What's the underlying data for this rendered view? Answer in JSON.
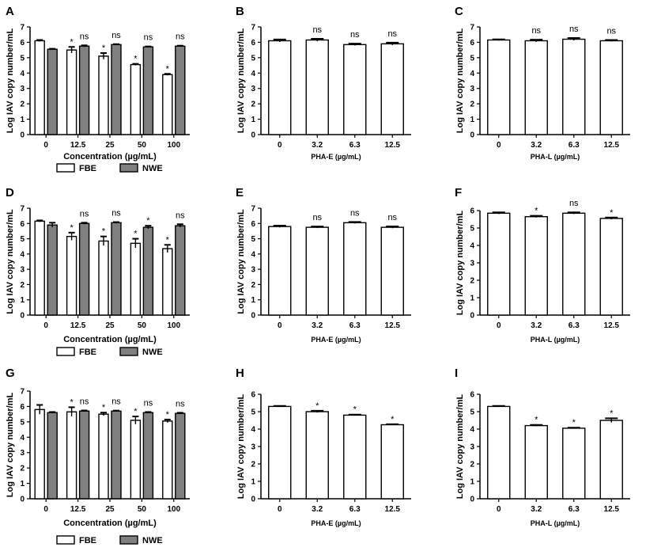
{
  "colors": {
    "fbe": "#ffffff",
    "nwe": "#808080",
    "axis": "#000000",
    "single": "#ffffff"
  },
  "chart_data": [
    {
      "panel": "A",
      "type": "bar",
      "title": "",
      "ylabel": "Log IAV copy number/mL",
      "xlabel": "Concentration (µg/mL)",
      "ylim": [
        0,
        7
      ],
      "yticks": [
        "0",
        "1",
        "2",
        "3",
        "4",
        "5",
        "6",
        "7"
      ],
      "categories": [
        "0",
        "12.5",
        "25",
        "50",
        "100"
      ],
      "legend": [
        "FBE",
        "NWE"
      ],
      "series": [
        {
          "name": "FBE",
          "values": [
            6.1,
            5.5,
            5.1,
            4.55,
            3.9
          ],
          "errors": [
            0.05,
            0.2,
            0.2,
            0.05,
            0.05
          ],
          "sig": [
            "",
            "*",
            "*",
            "*",
            "*"
          ]
        },
        {
          "name": "NWE",
          "values": [
            5.55,
            5.75,
            5.85,
            5.7,
            5.75
          ],
          "errors": [
            0.03,
            0.05,
            0.03,
            0.03,
            0.03
          ],
          "sig": [
            "",
            "ns",
            "ns",
            "ns",
            "ns"
          ]
        }
      ]
    },
    {
      "panel": "B",
      "type": "bar",
      "ylabel": "Log IAV copy number/mL",
      "xlabel": "PHA-E (µg/mL)",
      "ylim": [
        0,
        7
      ],
      "yticks": [
        "0",
        "1",
        "2",
        "3",
        "4",
        "5",
        "6",
        "7"
      ],
      "categories": [
        "0",
        "3.2",
        "6.3",
        "12.5"
      ],
      "series": [
        {
          "name": "PHA-E",
          "values": [
            6.1,
            6.15,
            5.85,
            5.9
          ],
          "errors": [
            0.08,
            0.08,
            0.06,
            0.08
          ],
          "sig": [
            "",
            "ns",
            "ns",
            "ns"
          ]
        }
      ]
    },
    {
      "panel": "C",
      "type": "bar",
      "ylabel": "Log IAV copy number/mL",
      "xlabel": "PHA-L (µg/mL)",
      "ylim": [
        0,
        7
      ],
      "yticks": [
        "0",
        "1",
        "2",
        "3",
        "4",
        "5",
        "6",
        "7"
      ],
      "categories": [
        "0",
        "3.2",
        "6.3",
        "12.5"
      ],
      "series": [
        {
          "name": "PHA-L",
          "values": [
            6.15,
            6.1,
            6.2,
            6.1
          ],
          "errors": [
            0.04,
            0.07,
            0.08,
            0.05
          ],
          "sig": [
            "",
            "ns",
            "ns",
            "ns"
          ]
        }
      ]
    },
    {
      "panel": "D",
      "type": "bar",
      "ylabel": "Log IAV copy number/mL",
      "xlabel": "Concentration (µg/mL)",
      "ylim": [
        0,
        7
      ],
      "yticks": [
        "0",
        "1",
        "2",
        "3",
        "4",
        "5",
        "6",
        "7"
      ],
      "categories": [
        "0",
        "12.5",
        "25",
        "50",
        "100"
      ],
      "legend": [
        "FBE",
        "NWE"
      ],
      "series": [
        {
          "name": "FBE",
          "values": [
            6.15,
            5.15,
            4.85,
            4.7,
            4.35
          ],
          "errors": [
            0.05,
            0.25,
            0.3,
            0.3,
            0.25
          ],
          "sig": [
            "",
            "*",
            "*",
            "*",
            "*"
          ]
        },
        {
          "name": "NWE",
          "values": [
            5.9,
            6.0,
            6.05,
            5.75,
            5.85
          ],
          "errors": [
            0.15,
            0.05,
            0.04,
            0.1,
            0.1
          ],
          "sig": [
            "",
            "ns",
            "ns",
            "*",
            "ns"
          ]
        }
      ]
    },
    {
      "panel": "E",
      "type": "bar",
      "ylabel": "Log IAV copy number/mL",
      "xlabel": "PHA-E (µg/mL)",
      "ylim": [
        0,
        7
      ],
      "yticks": [
        "0",
        "1",
        "2",
        "3",
        "4",
        "5",
        "6",
        "7"
      ],
      "categories": [
        "0",
        "3.2",
        "6.3",
        "12.5"
      ],
      "series": [
        {
          "name": "PHA-E",
          "values": [
            5.8,
            5.75,
            6.05,
            5.75
          ],
          "errors": [
            0.06,
            0.05,
            0.05,
            0.06
          ],
          "sig": [
            "",
            "ns",
            "ns",
            "ns"
          ]
        }
      ]
    },
    {
      "panel": "F",
      "type": "bar",
      "ylabel": "Log IAV copy number/mL",
      "xlabel": "PHA-L (µg/mL)",
      "ylim": [
        0,
        6
      ],
      "yticks": [
        "0",
        "1",
        "2",
        "3",
        "4",
        "5",
        "6"
      ],
      "categories": [
        "0",
        "3.2",
        "6.3",
        "12.5"
      ],
      "series": [
        {
          "name": "PHA-L",
          "values": [
            5.85,
            5.65,
            5.85,
            5.55
          ],
          "errors": [
            0.05,
            0.05,
            0.05,
            0.05
          ],
          "sig": [
            "",
            "*",
            "ns",
            "*"
          ]
        }
      ]
    },
    {
      "panel": "G",
      "type": "bar",
      "ylabel": "Log IAV copy number/mL",
      "xlabel": "Concentration (µg/mL)",
      "ylim": [
        0,
        7
      ],
      "yticks": [
        "0",
        "1",
        "2",
        "3",
        "4",
        "5",
        "6",
        "7"
      ],
      "categories": [
        "0",
        "12.5",
        "25",
        "50",
        "100"
      ],
      "legend": [
        "FBE",
        "NWE"
      ],
      "series": [
        {
          "name": "FBE",
          "values": [
            5.8,
            5.65,
            5.5,
            5.1,
            5.05
          ],
          "errors": [
            0.3,
            0.3,
            0.1,
            0.25,
            0.1
          ],
          "sig": [
            "",
            "*",
            "*",
            "*",
            "*"
          ]
        },
        {
          "name": "NWE",
          "values": [
            5.6,
            5.7,
            5.7,
            5.6,
            5.55
          ],
          "errors": [
            0.04,
            0.04,
            0.03,
            0.04,
            0.04
          ],
          "sig": [
            "",
            "ns",
            "ns",
            "ns",
            "ns"
          ]
        }
      ]
    },
    {
      "panel": "H",
      "type": "bar",
      "ylabel": "Log IAV copy number/mL",
      "xlabel": "PHA-E (µg/mL)",
      "ylim": [
        0,
        6
      ],
      "yticks": [
        "0",
        "1",
        "2",
        "3",
        "4",
        "5",
        "6"
      ],
      "categories": [
        "0",
        "3.2",
        "6.3",
        "12.5"
      ],
      "series": [
        {
          "name": "PHA-E",
          "values": [
            5.3,
            5.0,
            4.8,
            4.25
          ],
          "errors": [
            0.03,
            0.05,
            0.03,
            0.03
          ],
          "sig": [
            "",
            "*",
            "*",
            "*"
          ]
        }
      ]
    },
    {
      "panel": "I",
      "type": "bar",
      "ylabel": "Log IAV copy number/mL",
      "xlabel": "PHA-L (µg/mL)",
      "ylim": [
        0,
        6
      ],
      "yticks": [
        "0",
        "1",
        "2",
        "3",
        "4",
        "5",
        "6"
      ],
      "categories": [
        "0",
        "3.2",
        "6.3",
        "12.5"
      ],
      "series": [
        {
          "name": "PHA-L",
          "values": [
            5.3,
            4.2,
            4.05,
            4.5
          ],
          "errors": [
            0.03,
            0.04,
            0.03,
            0.12
          ],
          "sig": [
            "",
            "*",
            "*",
            "*"
          ]
        }
      ]
    }
  ]
}
